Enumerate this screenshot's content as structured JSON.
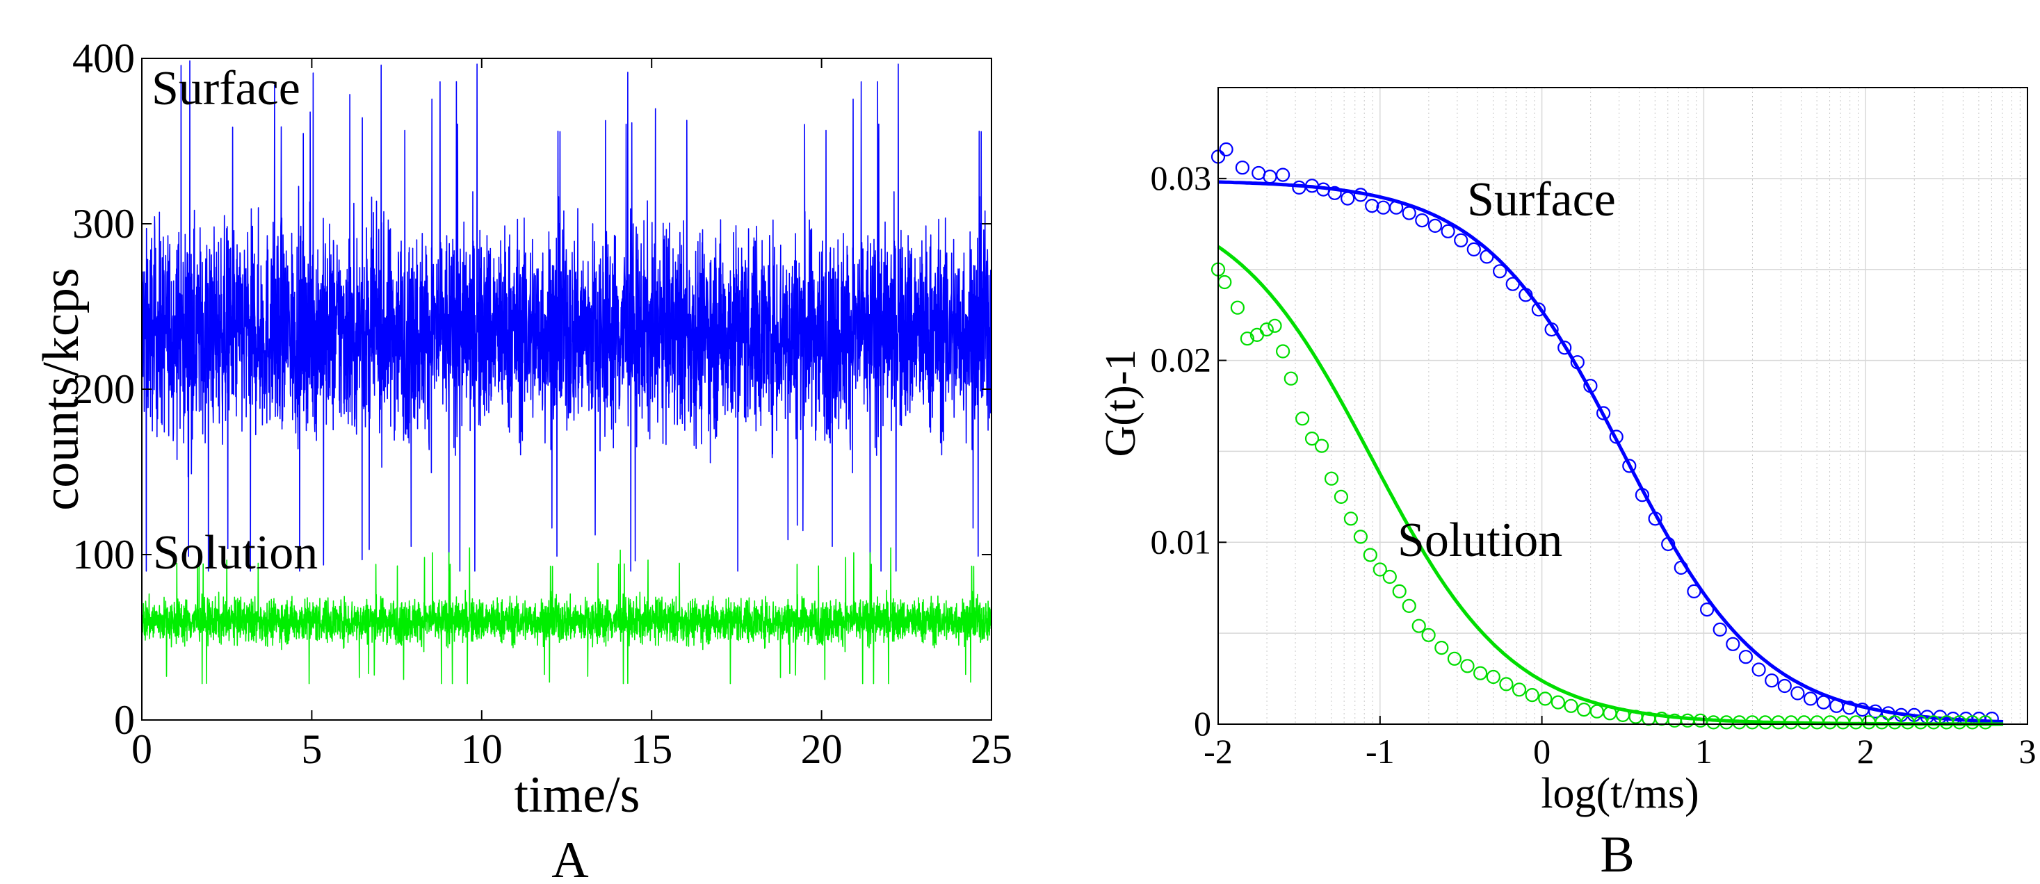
{
  "chart_data": [
    {
      "type": "line",
      "panel_label": "A",
      "xlabel": "time/s",
      "ylabel": "counts/kcps",
      "xlim": [
        0,
        25
      ],
      "ylim": [
        0,
        400
      ],
      "xticks": [
        0,
        5,
        10,
        15,
        20,
        25
      ],
      "yticks": [
        0,
        100,
        200,
        300,
        400
      ],
      "grid": false,
      "annotations": [
        {
          "text": "Surface",
          "x": 0.4,
          "y": 376
        },
        {
          "text": "Solution",
          "x": 0.4,
          "y": 97
        }
      ],
      "series": [
        {
          "color": "#0000ff",
          "mean": 235,
          "spread": 55,
          "min": 90,
          "max": 400
        },
        {
          "color": "#00ee00",
          "mean": 60,
          "spread": 12,
          "min": 22,
          "max": 105
        }
      ]
    },
    {
      "type": "scatter",
      "panel_label": "B",
      "xlabel": "log(t/ms)",
      "ylabel": "G(t)-1",
      "xlim": [
        -2,
        3
      ],
      "ylim": [
        0,
        0.035
      ],
      "xticks": [
        -2,
        -1,
        0,
        1,
        2,
        3
      ],
      "xtick_labels": [
        "-2",
        "-1",
        "0",
        "1",
        "2",
        "3"
      ],
      "yticks": [
        0,
        0.01,
        0.02,
        0.03
      ],
      "ytick_labels": [
        "0",
        "0.01",
        "0.02",
        "0.03"
      ],
      "grid": true,
      "annotations": [
        {
          "text": "Surface",
          "x": -0.45,
          "y": 0.0275
        },
        {
          "text": "Solution",
          "x": -0.9,
          "y": 0.0095
        }
      ],
      "series": [
        {
          "color": "#0000ff",
          "fit": {
            "amplitude": 0.0299,
            "log_tau": 0.5
          },
          "x": [
            -2.0,
            -1.95,
            -1.85,
            -1.75,
            -1.68,
            -1.6,
            -1.5,
            -1.42,
            -1.35,
            -1.28,
            -1.2,
            -1.12,
            -1.05,
            -0.98,
            -0.9,
            -0.82,
            -0.74,
            -0.66,
            -0.58,
            -0.5,
            -0.42,
            -0.34,
            -0.26,
            -0.18,
            -0.1,
            -0.02,
            0.06,
            0.14,
            0.22,
            0.3,
            0.38,
            0.46,
            0.54,
            0.62,
            0.7,
            0.78,
            0.86,
            0.94,
            1.02,
            1.1,
            1.18,
            1.26,
            1.34,
            1.42,
            1.5,
            1.58,
            1.66,
            1.74,
            1.82,
            1.9,
            1.98,
            2.06,
            2.14,
            2.22,
            2.3,
            2.38,
            2.46,
            2.54,
            2.62,
            2.7,
            2.78
          ],
          "y": [
            0.0312,
            0.0316,
            0.0306,
            0.0303,
            0.0301,
            0.0302,
            0.0295,
            0.0296,
            0.0294,
            0.0292,
            0.0289,
            0.0291,
            0.0285,
            0.0284,
            0.0284,
            0.0281,
            0.0277,
            0.0274,
            0.0271,
            0.0266,
            0.0261,
            0.0257,
            0.0249,
            0.0242,
            0.0236,
            0.0228,
            0.0217,
            0.0207,
            0.0199,
            0.0186,
            0.0171,
            0.0158,
            0.0142,
            0.0126,
            0.0113,
            0.0099,
            0.0086,
            0.0073,
            0.0063,
            0.0052,
            0.0044,
            0.0037,
            0.003,
            0.0024,
            0.0021,
            0.0017,
            0.0014,
            0.0012,
            0.001,
            0.0009,
            0.0008,
            0.0007,
            0.0006,
            0.0005,
            0.0005,
            0.0004,
            0.0004,
            0.0003,
            0.0003,
            0.0003,
            0.0003
          ]
        },
        {
          "color": "#00dd00",
          "fit": {
            "amplitude": 0.0292,
            "log_tau": -1.05
          },
          "x": [
            -2.0,
            -1.96,
            -1.88,
            -1.82,
            -1.76,
            -1.7,
            -1.65,
            -1.6,
            -1.55,
            -1.48,
            -1.42,
            -1.36,
            -1.3,
            -1.24,
            -1.18,
            -1.12,
            -1.06,
            -1.0,
            -0.94,
            -0.88,
            -0.82,
            -0.76,
            -0.7,
            -0.62,
            -0.54,
            -0.46,
            -0.38,
            -0.3,
            -0.22,
            -0.14,
            -0.06,
            0.02,
            0.1,
            0.18,
            0.26,
            0.34,
            0.42,
            0.5,
            0.58,
            0.66,
            0.74,
            0.82,
            0.9,
            0.98,
            1.06,
            1.14,
            1.22,
            1.3,
            1.38,
            1.46,
            1.54,
            1.62,
            1.7,
            1.78,
            1.86,
            1.94,
            2.02,
            2.1,
            2.18,
            2.26,
            2.34,
            2.42,
            2.5,
            2.58,
            2.66,
            2.74
          ],
          "y": [
            0.025,
            0.0243,
            0.0229,
            0.0212,
            0.0214,
            0.0217,
            0.0219,
            0.0205,
            0.019,
            0.0168,
            0.0157,
            0.0153,
            0.0135,
            0.0125,
            0.0113,
            0.0103,
            0.0093,
            0.0085,
            0.0081,
            0.0073,
            0.0065,
            0.0054,
            0.0049,
            0.0042,
            0.0036,
            0.0032,
            0.0028,
            0.0026,
            0.0022,
            0.0019,
            0.0016,
            0.0014,
            0.0012,
            0.001,
            0.0008,
            0.0007,
            0.0006,
            0.0005,
            0.0004,
            0.0003,
            0.0003,
            0.0002,
            0.0002,
            0.0002,
            0.0001,
            0.0001,
            0.0001,
            0.0001,
            0.0001,
            0.0001,
            0.0001,
            0.0001,
            0.0001,
            0.0001,
            0.0001,
            0.0001,
            0.0001,
            0.0001,
            0.0001,
            0.0001,
            0.0001,
            0.0001,
            0.0001,
            0.0001,
            0.0001,
            0.0001
          ]
        }
      ]
    }
  ]
}
